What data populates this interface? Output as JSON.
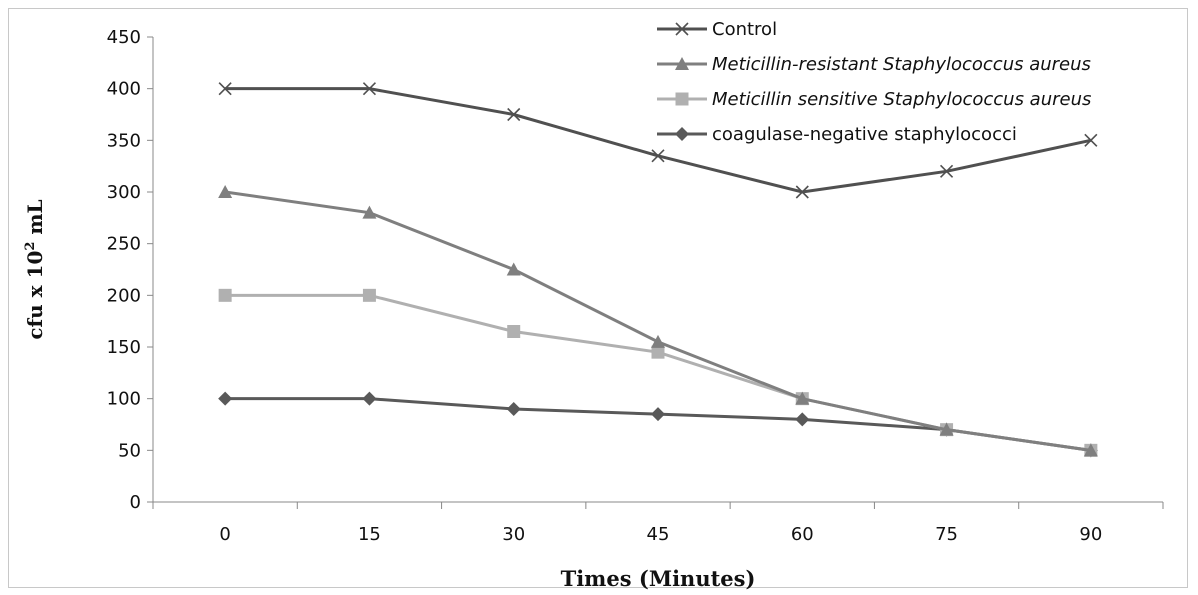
{
  "chart_data": {
    "type": "line",
    "title": "",
    "xlabel": "Times (Minutes)",
    "ylabel_parts": [
      "cfu x 10",
      "2",
      " mL"
    ],
    "ylim": [
      0,
      450
    ],
    "yticks": [
      0,
      50,
      100,
      150,
      200,
      250,
      300,
      350,
      400,
      450
    ],
    "x": [
      "0",
      "15",
      "30",
      "45",
      "60",
      "75",
      "90"
    ],
    "grid": false,
    "legend_position": "top-right",
    "series": [
      {
        "name": "Control",
        "italic": false,
        "marker": "x",
        "color": "#505050",
        "values": [
          400,
          400,
          375,
          335,
          300,
          320,
          350
        ]
      },
      {
        "name": "Meticillin-resistant Staphylococcus aureus",
        "italic": true,
        "marker": "triangle",
        "color": "#7f7f7f",
        "values": [
          300,
          280,
          225,
          155,
          100,
          70,
          50
        ]
      },
      {
        "name": "Meticillin sensitive Staphylococcus aureus",
        "italic": true,
        "marker": "square",
        "color": "#b0b0b0",
        "values": [
          200,
          200,
          165,
          145,
          100,
          70,
          50
        ]
      },
      {
        "name": "coagulase-negative staphylococci",
        "italic": false,
        "marker": "diamond",
        "color": "#595959",
        "values": [
          100,
          100,
          90,
          85,
          80,
          70,
          50
        ]
      }
    ]
  }
}
